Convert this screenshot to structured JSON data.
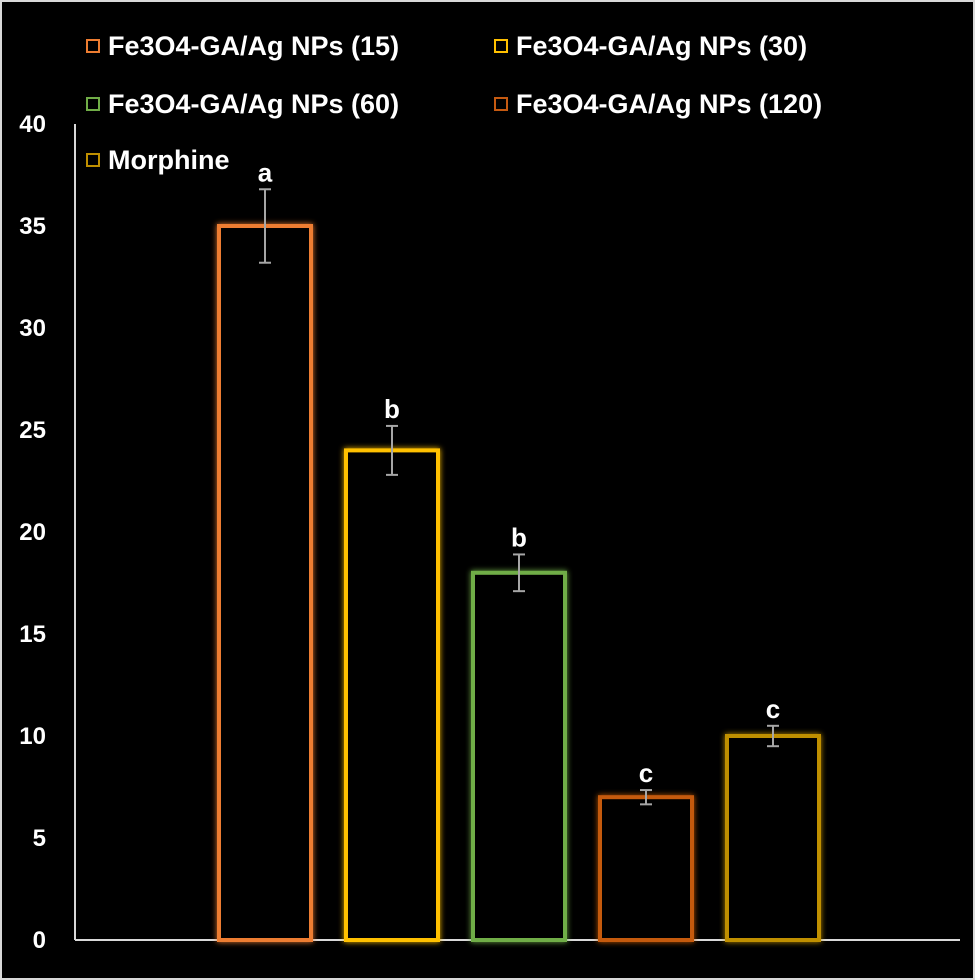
{
  "chart_data": {
    "type": "bar",
    "title": "",
    "xlabel": "",
    "ylabel": "",
    "ylim": [
      0,
      40
    ],
    "yticks": [
      0,
      5,
      10,
      15,
      20,
      25,
      30,
      35,
      40
    ],
    "grid": false,
    "legend_position": "top",
    "series": [
      {
        "name": "Fe3O4-GA/Ag NPs (15)",
        "value": 35,
        "error": 1.8,
        "label": "a",
        "color": "#ed7d31"
      },
      {
        "name": "Fe3O4-GA/Ag NPs (30)",
        "value": 24,
        "error": 1.2,
        "label": "b",
        "color": "#ffc000"
      },
      {
        "name": "Fe3O4-GA/Ag NPs (60)",
        "value": 18,
        "error": 0.9,
        "label": "b",
        "color": "#70ad47"
      },
      {
        "name": "Fe3O4-GA/Ag NPs (120)",
        "value": 7,
        "error": 0.35,
        "label": "c",
        "color": "#c55a11"
      },
      {
        "name": "Morphine",
        "value": 10,
        "error": 0.5,
        "label": "c",
        "color": "#bf8f00"
      }
    ]
  }
}
